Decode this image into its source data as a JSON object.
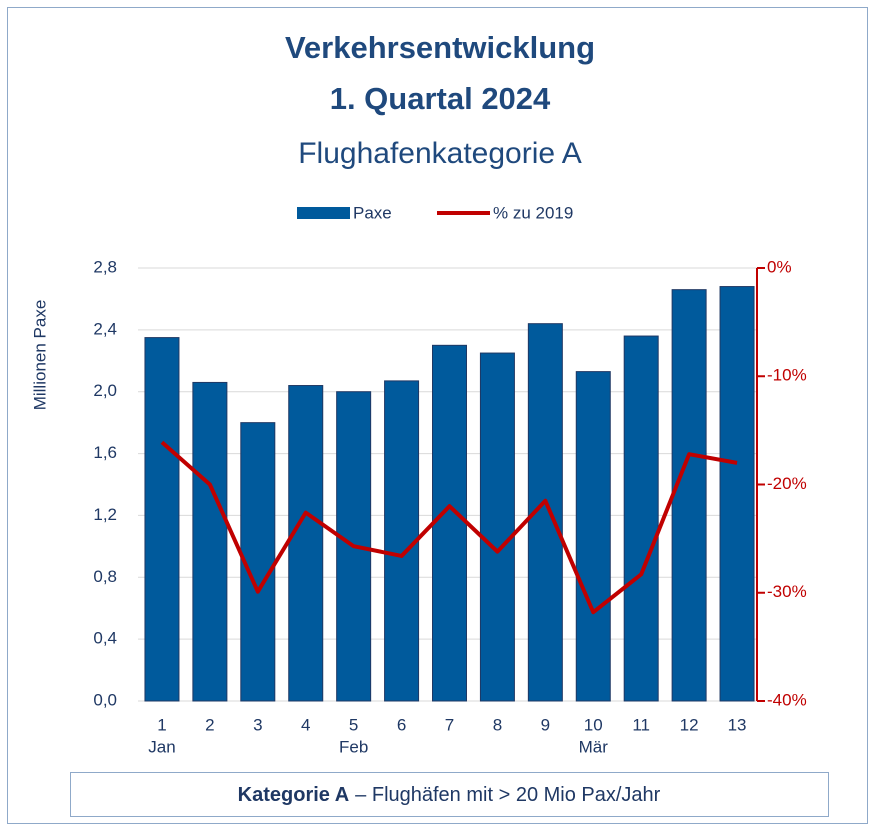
{
  "chart_data": {
    "type": "bar",
    "title": [
      "Verkehrsentwicklung",
      "1. Quartal 2024"
    ],
    "subtitle": "Flughafenkategorie A",
    "ylabel": "Millionen Paxe",
    "categories": [
      "1",
      "2",
      "3",
      "4",
      "5",
      "6",
      "7",
      "8",
      "9",
      "10",
      "11",
      "12",
      "13"
    ],
    "months": [
      "Jan",
      null,
      null,
      null,
      "Feb",
      null,
      null,
      null,
      null,
      "Mär",
      null,
      null,
      null
    ],
    "series": [
      {
        "name": "Paxe",
        "type": "bar",
        "color": "#005a9c",
        "values": [
          2.35,
          2.06,
          1.8,
          2.04,
          2.0,
          2.07,
          2.3,
          2.25,
          2.44,
          2.13,
          2.36,
          2.66,
          2.68
        ]
      },
      {
        "name": "% zu 2019",
        "type": "line",
        "axis": "y2",
        "color": "#c00000",
        "values": [
          -16.1,
          -20.0,
          -29.9,
          -22.6,
          -25.7,
          -26.6,
          -22.0,
          -26.2,
          -21.5,
          -31.8,
          -28.3,
          -17.2,
          -18.0
        ]
      }
    ],
    "ylim": [
      0,
      2.8
    ],
    "yticks": [
      {
        "value": 0,
        "label": "0,0"
      },
      {
        "value": 0.4,
        "label": "0,4"
      },
      {
        "value": 0.8,
        "label": "0,8"
      },
      {
        "value": 1.2,
        "label": "1,2"
      },
      {
        "value": 1.6,
        "label": "1,6"
      },
      {
        "value": 2.0,
        "label": "2,0"
      },
      {
        "value": 2.4,
        "label": "2,4"
      },
      {
        "value": 2.8,
        "label": "2,8"
      }
    ],
    "y2lim": [
      -40,
      0
    ],
    "y2ticks": [
      {
        "value": -40,
        "label": "-40%"
      },
      {
        "value": -30,
        "label": "-30%"
      },
      {
        "value": -20,
        "label": "-20%"
      },
      {
        "value": -10,
        "label": "-10%"
      },
      {
        "value": 0,
        "label": "0%"
      }
    ],
    "grid": true,
    "legend": "top",
    "footnote": {
      "bold": "Kategorie A",
      "text": "– Flughäfen mit > 20 Mio Pax/Jahr"
    }
  }
}
